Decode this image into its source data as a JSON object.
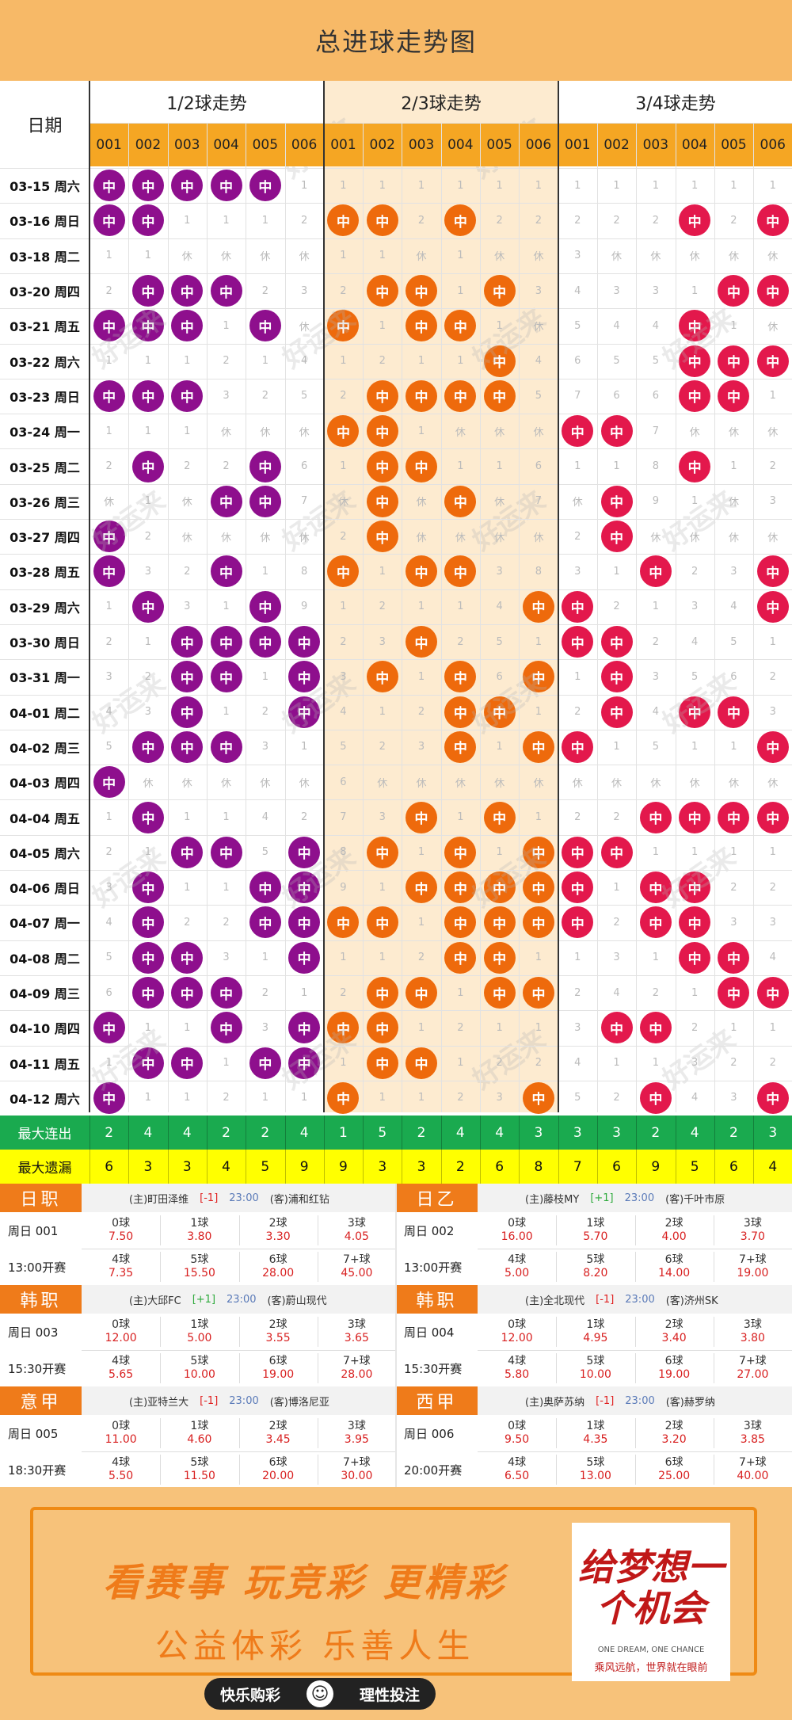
{
  "title": "总进球走势图",
  "date_header": "日期",
  "groups": [
    "1/2球走势",
    "2/3球走势",
    "3/4球走势"
  ],
  "sub_cols": [
    "001",
    "002",
    "003",
    "004",
    "005",
    "006"
  ],
  "hit_label": "中",
  "colors": {
    "purple": "#8e0f8d",
    "orange": "#ee6a0c",
    "red": "#e3184c",
    "header_bg": "#f7b967",
    "sub_header_bg": "#f5a623",
    "highlight_band": "#fdebd0",
    "max_streak_bg": "#1aaa4f",
    "max_miss_bg": "#ffff00"
  },
  "rows": [
    {
      "date": "03-15 周六",
      "cells": [
        "中",
        "中",
        "中",
        "中",
        "中",
        "1",
        "1",
        "1",
        "1",
        "1",
        "1",
        "1",
        "1",
        "1",
        "1",
        "1",
        "1",
        "1"
      ]
    },
    {
      "date": "03-16 周日",
      "cells": [
        "中",
        "中",
        "1",
        "1",
        "1",
        "2",
        "中",
        "中",
        "2",
        "中",
        "2",
        "2",
        "2",
        "2",
        "2",
        "中",
        "2",
        "中"
      ]
    },
    {
      "date": "03-18 周二",
      "cells": [
        "1",
        "1",
        "休",
        "休",
        "休",
        "休",
        "1",
        "1",
        "休",
        "1",
        "休",
        "休",
        "3",
        "休",
        "休",
        "休",
        "休",
        "休"
      ]
    },
    {
      "date": "03-20 周四",
      "cells": [
        "2",
        "中",
        "中",
        "中",
        "2",
        "3",
        "2",
        "中",
        "中",
        "1",
        "中",
        "3",
        "4",
        "3",
        "3",
        "1",
        "中",
        "中"
      ]
    },
    {
      "date": "03-21 周五",
      "cells": [
        "中",
        "中",
        "中",
        "1",
        "中",
        "休",
        "中",
        "1",
        "中",
        "中",
        "1",
        "休",
        "5",
        "4",
        "4",
        "中",
        "1",
        "休"
      ]
    },
    {
      "date": "03-22 周六",
      "cells": [
        "1",
        "1",
        "1",
        "2",
        "1",
        "4",
        "1",
        "2",
        "1",
        "1",
        "中",
        "4",
        "6",
        "5",
        "5",
        "中",
        "中",
        "中"
      ]
    },
    {
      "date": "03-23 周日",
      "cells": [
        "中",
        "中",
        "中",
        "3",
        "2",
        "5",
        "2",
        "中",
        "中",
        "中",
        "中",
        "5",
        "7",
        "6",
        "6",
        "中",
        "中",
        "1"
      ]
    },
    {
      "date": "03-24 周一",
      "cells": [
        "1",
        "1",
        "1",
        "休",
        "休",
        "休",
        "中",
        "中",
        "1",
        "休",
        "休",
        "休",
        "中",
        "中",
        "7",
        "休",
        "休",
        "休"
      ]
    },
    {
      "date": "03-25 周二",
      "cells": [
        "2",
        "中",
        "2",
        "2",
        "中",
        "6",
        "1",
        "中",
        "中",
        "1",
        "1",
        "6",
        "1",
        "1",
        "8",
        "中",
        "1",
        "2"
      ]
    },
    {
      "date": "03-26 周三",
      "cells": [
        "休",
        "1",
        "休",
        "中",
        "中",
        "7",
        "休",
        "中",
        "休",
        "中",
        "休",
        "7",
        "休",
        "中",
        "9",
        "1",
        "休",
        "3"
      ]
    },
    {
      "date": "03-27 周四",
      "cells": [
        "中",
        "2",
        "休",
        "休",
        "休",
        "休",
        "2",
        "中",
        "休",
        "休",
        "休",
        "休",
        "2",
        "中",
        "休",
        "休",
        "休",
        "休"
      ]
    },
    {
      "date": "03-28 周五",
      "cells": [
        "中",
        "3",
        "2",
        "中",
        "1",
        "8",
        "中",
        "1",
        "中",
        "中",
        "3",
        "8",
        "3",
        "1",
        "中",
        "2",
        "3",
        "中"
      ]
    },
    {
      "date": "03-29 周六",
      "cells": [
        "1",
        "中",
        "3",
        "1",
        "中",
        "9",
        "1",
        "2",
        "1",
        "1",
        "4",
        "中",
        "中",
        "2",
        "1",
        "3",
        "4",
        "中"
      ]
    },
    {
      "date": "03-30 周日",
      "cells": [
        "2",
        "1",
        "中",
        "中",
        "中",
        "中",
        "2",
        "3",
        "中",
        "2",
        "5",
        "1",
        "中",
        "中",
        "2",
        "4",
        "5",
        "1"
      ]
    },
    {
      "date": "03-31 周一",
      "cells": [
        "3",
        "2",
        "中",
        "中",
        "1",
        "中",
        "3",
        "中",
        "1",
        "中",
        "6",
        "中",
        "1",
        "中",
        "3",
        "5",
        "6",
        "2"
      ]
    },
    {
      "date": "04-01 周二",
      "cells": [
        "4",
        "3",
        "中",
        "1",
        "2",
        "中",
        "4",
        "1",
        "2",
        "中",
        "中",
        "1",
        "2",
        "中",
        "4",
        "中",
        "中",
        "3"
      ]
    },
    {
      "date": "04-02 周三",
      "cells": [
        "5",
        "中",
        "中",
        "中",
        "3",
        "1",
        "5",
        "2",
        "3",
        "中",
        "1",
        "中",
        "中",
        "1",
        "5",
        "1",
        "1",
        "中"
      ]
    },
    {
      "date": "04-03 周四",
      "cells": [
        "中",
        "休",
        "休",
        "休",
        "休",
        "休",
        "6",
        "休",
        "休",
        "休",
        "休",
        "休",
        "休",
        "休",
        "休",
        "休",
        "休",
        "休"
      ]
    },
    {
      "date": "04-04 周五",
      "cells": [
        "1",
        "中",
        "1",
        "1",
        "4",
        "2",
        "7",
        "3",
        "中",
        "1",
        "中",
        "1",
        "2",
        "2",
        "中",
        "中",
        "中",
        "中"
      ]
    },
    {
      "date": "04-05 周六",
      "cells": [
        "2",
        "1",
        "中",
        "中",
        "5",
        "中",
        "8",
        "中",
        "1",
        "中",
        "1",
        "中",
        "中",
        "中",
        "1",
        "1",
        "1",
        "1"
      ]
    },
    {
      "date": "04-06 周日",
      "cells": [
        "3",
        "中",
        "1",
        "1",
        "中",
        "中",
        "9",
        "1",
        "中",
        "中",
        "中",
        "中",
        "中",
        "1",
        "中",
        "中",
        "2",
        "2"
      ]
    },
    {
      "date": "04-07 周一",
      "cells": [
        "4",
        "中",
        "2",
        "2",
        "中",
        "中",
        "中",
        "中",
        "1",
        "中",
        "中",
        "中",
        "中",
        "2",
        "中",
        "中",
        "3",
        "3"
      ]
    },
    {
      "date": "04-08 周二",
      "cells": [
        "5",
        "中",
        "中",
        "3",
        "1",
        "中",
        "1",
        "1",
        "2",
        "中",
        "中",
        "1",
        "1",
        "3",
        "1",
        "中",
        "中",
        "4"
      ]
    },
    {
      "date": "04-09 周三",
      "cells": [
        "6",
        "中",
        "中",
        "中",
        "2",
        "1",
        "2",
        "中",
        "中",
        "1",
        "中",
        "中",
        "2",
        "4",
        "2",
        "1",
        "中",
        "中"
      ]
    },
    {
      "date": "04-10 周四",
      "cells": [
        "中",
        "1",
        "1",
        "中",
        "3",
        "中",
        "中",
        "中",
        "1",
        "2",
        "1",
        "1",
        "3",
        "中",
        "中",
        "2",
        "1",
        "1"
      ]
    },
    {
      "date": "04-11 周五",
      "cells": [
        "1",
        "中",
        "中",
        "1",
        "中",
        "中",
        "1",
        "中",
        "中",
        "1",
        "2",
        "2",
        "4",
        "1",
        "1",
        "3",
        "2",
        "2"
      ]
    },
    {
      "date": "04-12 周六",
      "cells": [
        "中",
        "1",
        "1",
        "2",
        "1",
        "1",
        "中",
        "1",
        "1",
        "2",
        "3",
        "中",
        "5",
        "2",
        "中",
        "4",
        "3",
        "中"
      ]
    }
  ],
  "stats": [
    {
      "label": "最大连出",
      "values": [
        "2",
        "4",
        "4",
        "2",
        "2",
        "4",
        "1",
        "5",
        "2",
        "4",
        "4",
        "3",
        "3",
        "3",
        "2",
        "4",
        "2",
        "3"
      ]
    },
    {
      "label": "最大遗漏",
      "values": [
        "6",
        "3",
        "3",
        "4",
        "5",
        "9",
        "9",
        "3",
        "3",
        "2",
        "6",
        "8",
        "7",
        "6",
        "9",
        "5",
        "6",
        "4"
      ]
    }
  ],
  "matches": [
    {
      "league": "日职",
      "home": "(主)町田泽维",
      "handicap": "[-1]",
      "time": "23:00",
      "away": "(客)浦和红钻",
      "game": "周日 001",
      "kickoff": "13:00开赛",
      "odds": [
        {
          "k": "0球",
          "v": "7.50"
        },
        {
          "k": "1球",
          "v": "3.80"
        },
        {
          "k": "2球",
          "v": "3.30"
        },
        {
          "k": "3球",
          "v": "4.05"
        },
        {
          "k": "4球",
          "v": "7.35"
        },
        {
          "k": "5球",
          "v": "15.50"
        },
        {
          "k": "6球",
          "v": "28.00"
        },
        {
          "k": "7+球",
          "v": "45.00"
        }
      ]
    },
    {
      "league": "日乙",
      "home": "(主)藤枝MY",
      "handicap": "[+1]",
      "time": "23:00",
      "away": "(客)千叶市原",
      "game": "周日 002",
      "kickoff": "13:00开赛",
      "odds": [
        {
          "k": "0球",
          "v": "16.00"
        },
        {
          "k": "1球",
          "v": "5.70"
        },
        {
          "k": "2球",
          "v": "4.00"
        },
        {
          "k": "3球",
          "v": "3.70"
        },
        {
          "k": "4球",
          "v": "5.00"
        },
        {
          "k": "5球",
          "v": "8.20"
        },
        {
          "k": "6球",
          "v": "14.00"
        },
        {
          "k": "7+球",
          "v": "19.00"
        }
      ]
    },
    {
      "league": "韩职",
      "home": "(主)大邱FC",
      "handicap": "[+1]",
      "time": "23:00",
      "away": "(客)蔚山现代",
      "game": "周日 003",
      "kickoff": "15:30开赛",
      "odds": [
        {
          "k": "0球",
          "v": "12.00"
        },
        {
          "k": "1球",
          "v": "5.00"
        },
        {
          "k": "2球",
          "v": "3.55"
        },
        {
          "k": "3球",
          "v": "3.65"
        },
        {
          "k": "4球",
          "v": "5.65"
        },
        {
          "k": "5球",
          "v": "10.00"
        },
        {
          "k": "6球",
          "v": "19.00"
        },
        {
          "k": "7+球",
          "v": "28.00"
        }
      ]
    },
    {
      "league": "韩职",
      "home": "(主)全北现代",
      "handicap": "[-1]",
      "time": "23:00",
      "away": "(客)济州SK",
      "game": "周日 004",
      "kickoff": "15:30开赛",
      "odds": [
        {
          "k": "0球",
          "v": "12.00"
        },
        {
          "k": "1球",
          "v": "4.95"
        },
        {
          "k": "2球",
          "v": "3.40"
        },
        {
          "k": "3球",
          "v": "3.80"
        },
        {
          "k": "4球",
          "v": "5.80"
        },
        {
          "k": "5球",
          "v": "10.00"
        },
        {
          "k": "6球",
          "v": "19.00"
        },
        {
          "k": "7+球",
          "v": "27.00"
        }
      ]
    },
    {
      "league": "意甲",
      "home": "(主)亚特兰大",
      "handicap": "[-1]",
      "time": "23:00",
      "away": "(客)博洛尼亚",
      "game": "周日 005",
      "kickoff": "18:30开赛",
      "odds": [
        {
          "k": "0球",
          "v": "11.00"
        },
        {
          "k": "1球",
          "v": "4.60"
        },
        {
          "k": "2球",
          "v": "3.45"
        },
        {
          "k": "3球",
          "v": "3.95"
        },
        {
          "k": "4球",
          "v": "5.50"
        },
        {
          "k": "5球",
          "v": "11.50"
        },
        {
          "k": "6球",
          "v": "20.00"
        },
        {
          "k": "7+球",
          "v": "30.00"
        }
      ]
    },
    {
      "league": "西甲",
      "home": "(主)奥萨苏纳",
      "handicap": "[-1]",
      "time": "23:00",
      "away": "(客)赫罗纳",
      "game": "周日 006",
      "kickoff": "20:00开赛",
      "odds": [
        {
          "k": "0球",
          "v": "9.50"
        },
        {
          "k": "1球",
          "v": "4.35"
        },
        {
          "k": "2球",
          "v": "3.20"
        },
        {
          "k": "3球",
          "v": "3.85"
        },
        {
          "k": "4球",
          "v": "6.50"
        },
        {
          "k": "5球",
          "v": "13.00"
        },
        {
          "k": "6球",
          "v": "25.00"
        },
        {
          "k": "7+球",
          "v": "40.00"
        }
      ]
    }
  ],
  "watermark": "好运来",
  "banner": {
    "slogan1": "看赛事 玩竞彩 更精彩",
    "slogan2": "公益体彩 乐善人生",
    "logo_text": "给梦想一个机会",
    "logo_en": "ONE DREAM, ONE CHANCE",
    "logo_cn": "乘风远航，世界就在眼前",
    "bar_left": "快乐购彩",
    "bar_right": "理性投注"
  }
}
